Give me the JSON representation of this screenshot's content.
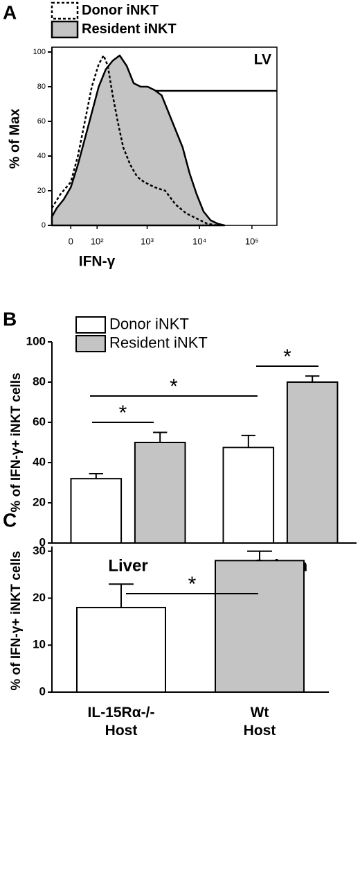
{
  "chart_data": [
    {
      "type": "line",
      "panel": "A",
      "annotation": "LV",
      "xlabel": "IFN-γ",
      "ylabel": "% of Max",
      "xscale": "biexponential",
      "xlim": [
        -65,
        300000
      ],
      "ylim": [
        0,
        100
      ],
      "xticks": [
        {
          "value": 0,
          "label": "0"
        },
        {
          "value": 100,
          "label": "10²"
        },
        {
          "value": 1000,
          "label": "10³"
        },
        {
          "value": 10000,
          "label": "10⁴"
        },
        {
          "value": 100000,
          "label": "10⁵"
        }
      ],
      "yticks": [
        0,
        20,
        40,
        60,
        80,
        100
      ],
      "series": [
        {
          "name": "Donor iNKT",
          "style": "dashed",
          "color": "#000000",
          "x": [
            -65,
            -33,
            0,
            22,
            46,
            74,
            109,
            140,
            171,
            215,
            270,
            347,
            474,
            645,
            878,
            1393,
            2209,
            3500,
            5550,
            8792,
            13930,
            22085
          ],
          "values": [
            10,
            18,
            25,
            40,
            60,
            80,
            93,
            98,
            92,
            75,
            60,
            45,
            35,
            28,
            25,
            22,
            20,
            12,
            7,
            4,
            1,
            0
          ]
        },
        {
          "name": "Resident iNKT",
          "style": "filled",
          "color": "#c4c4c4",
          "x": [
            -65,
            -46,
            -22,
            0,
            22,
            46,
            74,
            109,
            155,
            215,
            296,
            405,
            552,
            752,
            1022,
            1393,
            1894,
            2576,
            3500,
            4755,
            6467,
            8792,
            11950,
            16240,
            22085,
            30030
          ],
          "values": [
            5,
            10,
            15,
            22,
            35,
            50,
            65,
            80,
            90,
            95,
            98,
            92,
            82,
            80,
            80,
            78,
            75,
            65,
            55,
            45,
            30,
            18,
            8,
            3,
            1,
            0
          ]
        }
      ]
    },
    {
      "type": "bar",
      "panel": "B",
      "ylabel": "% of IFN-γ+ iNKT cells",
      "categories": [
        "Liver",
        "Spleen"
      ],
      "ylim": [
        0,
        100
      ],
      "yticks": [
        0,
        20,
        40,
        60,
        80,
        100
      ],
      "series": [
        {
          "name": "Donor iNKT",
          "color": "#ffffff",
          "values": [
            32,
            47.5
          ],
          "errors": [
            2.5,
            6
          ]
        },
        {
          "name": "Resident iNKT",
          "color": "#c4c4c4",
          "values": [
            50,
            80
          ],
          "errors": [
            5,
            3
          ]
        }
      ],
      "annotations": [
        "*",
        "*",
        "*"
      ]
    },
    {
      "type": "bar",
      "panel": "C",
      "ylabel": "% of IFN-γ+ iNKT cells",
      "categories": [
        [
          "IL-15Rα-/-",
          "Host"
        ],
        [
          "Wt",
          "Host"
        ]
      ],
      "ylim": [
        0,
        31
      ],
      "yticks": [
        0,
        10,
        20,
        30
      ],
      "values": [
        18,
        28
      ],
      "errors": [
        5,
        2
      ],
      "colors": [
        "#ffffff",
        "#c4c4c4"
      ],
      "annotations": [
        "*"
      ]
    }
  ]
}
